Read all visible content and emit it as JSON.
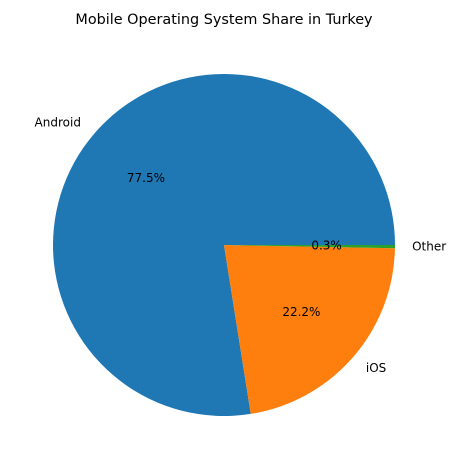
{
  "chart_data": {
    "type": "pie",
    "title": "Mobile Operating System Share in Turkey",
    "categories": [
      "Android",
      "iOS",
      "Other"
    ],
    "values": [
      77.5,
      22.2,
      0.3
    ],
    "percent_labels": [
      "77.5%",
      "22.2%",
      "0.3%"
    ],
    "colors": [
      "#1f77b4",
      "#ff7f0e",
      "#2ca02c"
    ],
    "start_angle": "0 degrees (3 o'clock)",
    "direction": "counterclockwise",
    "legend": "none"
  }
}
